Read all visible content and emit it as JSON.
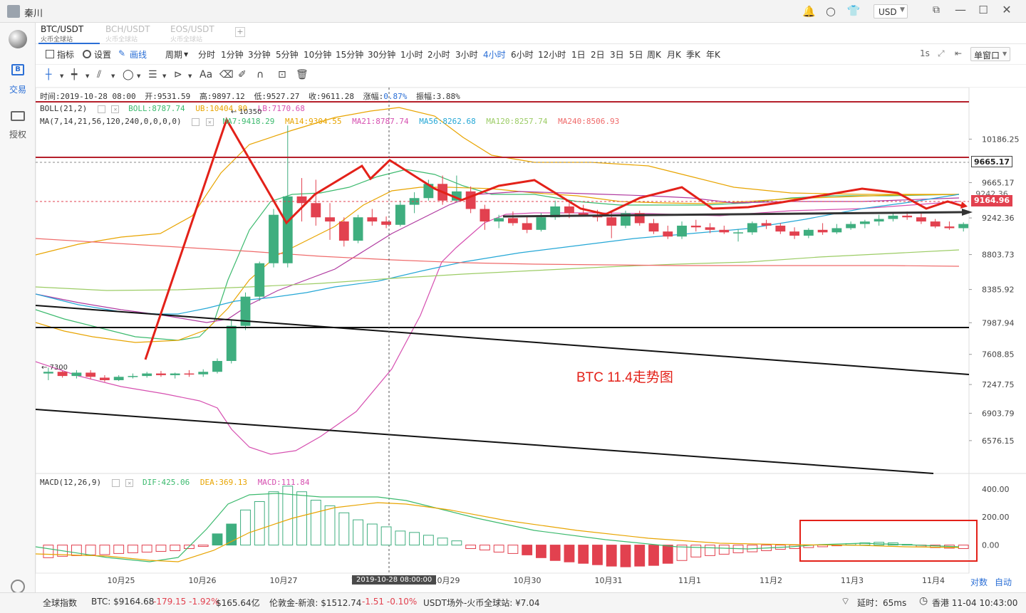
{
  "window": {
    "user": "秦川",
    "currency": "USD"
  },
  "tabs": [
    {
      "pair": "BTC/USDT",
      "exchange": "火币全球站"
    },
    {
      "pair": "BCH/USDT",
      "exchange": "火币全球站"
    },
    {
      "pair": "EOS/USDT",
      "exchange": "火币全球站"
    }
  ],
  "sidebar": {
    "trade": "交易",
    "auth": "授权"
  },
  "toolbar": {
    "indicator": "指标",
    "settings": "设置",
    "draw": "画线",
    "period": "周期",
    "periods": [
      "分时",
      "1分钟",
      "3分钟",
      "5分钟",
      "10分钟",
      "15分钟",
      "30分钟",
      "1小时",
      "2小时",
      "3小时",
      "4小时",
      "6小时",
      "12小时",
      "1日",
      "2日",
      "3日",
      "5日",
      "周K",
      "月K",
      "季K",
      "年K"
    ],
    "active_period": "4小时",
    "refresh": "1s",
    "window_mode": "单窗口"
  },
  "info_line": {
    "time": "时间:2019-10-28 08:00",
    "open": "开:9531.59",
    "high": "高:9897.12",
    "low": "低:9527.27",
    "close": "收:9611.28",
    "change_label": "涨幅:",
    "change_value": "0.87%",
    "amplitude": "振幅:3.88%"
  },
  "boll": {
    "label": "BOLL(21,2)",
    "mid": "BOLL:8787.74",
    "ub": "UB:10404.80",
    "lb": "LB:7170.68"
  },
  "ma": {
    "label": "MA(7,14,21,56,120,240,0,0,0,0)",
    "ma7": "MA7:9418.29",
    "ma14": "MA14:9304.55",
    "ma21": "MA21:8787.74",
    "ma56": "MA56:8262.68",
    "ma120": "MA120:8257.74",
    "ma240": "MA240:8506.93"
  },
  "macd": {
    "label": "MACD(12,26,9)",
    "dif": "DIF:425.06",
    "dea": "DEA:369.13",
    "macd": "MACD:111.84"
  },
  "annotation": "BTC 11.4走势图",
  "price_marks": {
    "high": "10350",
    "low": "7300"
  },
  "crosshair_label": "2019-10-28 08:00:00",
  "scale_buttons": {
    "log": "对数",
    "auto": "自动"
  },
  "price_tags": {
    "level": "9665.17",
    "level2": "9242.36",
    "current": "9164.96"
  },
  "status": {
    "index_label": "全球指数",
    "btc": "BTC: $9164.68",
    "btc_change": "-179.15 -1.92%",
    "btc_vol": "$165.64亿",
    "gold": "伦敦金-新浪: $1512.74",
    "gold_change": "-1.51 -0.10%",
    "usdt": "USDT场外-火币全球站: ¥7.04",
    "latency": "延时：65ms",
    "clock": "香港 11-04 10:43:00"
  },
  "colors": {
    "up": "#3fae7f",
    "down": "#e2414f",
    "accent": "#2b6fd6",
    "annotation": "#e32119"
  },
  "chart_data": {
    "type": "candlestick",
    "x_ticks": [
      "10月25",
      "10月26",
      "10月27",
      "10月28",
      "10月29",
      "10月30",
      "10月31",
      "11月1",
      "11月2",
      "11月3",
      "11月4"
    ],
    "y_ticks": [
      10186.25,
      9665.17,
      9242.36,
      8803.73,
      8385.92,
      7987.94,
      7608.85,
      7247.75,
      6903.79,
      6576.15
    ],
    "ylim": [
      6200,
      10650
    ],
    "candles": [
      [
        7380,
        7450,
        7300,
        7400
      ],
      [
        7400,
        7410,
        7330,
        7350
      ],
      [
        7350,
        7420,
        7320,
        7390
      ],
      [
        7390,
        7420,
        7310,
        7340
      ],
      [
        7330,
        7360,
        7280,
        7300
      ],
      [
        7300,
        7360,
        7290,
        7340
      ],
      [
        7340,
        7380,
        7320,
        7350
      ],
      [
        7350,
        7400,
        7330,
        7380
      ],
      [
        7380,
        7410,
        7340,
        7360
      ],
      [
        7360,
        7390,
        7320,
        7380
      ],
      [
        7380,
        7420,
        7340,
        7370
      ],
      [
        7370,
        7430,
        7340,
        7400
      ],
      [
        7400,
        7560,
        7380,
        7530
      ],
      [
        7530,
        8030,
        7500,
        7950
      ],
      [
        7950,
        8350,
        7900,
        8300
      ],
      [
        8300,
        8720,
        8250,
        8700
      ],
      [
        8700,
        9350,
        8650,
        9280
      ],
      [
        8700,
        10350,
        8650,
        9500
      ],
      [
        9500,
        9720,
        9200,
        9420
      ],
      [
        9420,
        9700,
        9150,
        9250
      ],
      [
        9250,
        9420,
        8980,
        9200
      ],
      [
        9200,
        9250,
        8900,
        8970
      ],
      [
        8970,
        9280,
        8940,
        9250
      ],
      [
        9250,
        9350,
        9150,
        9200
      ],
      [
        9200,
        9260,
        9120,
        9160
      ],
      [
        9160,
        9450,
        9140,
        9400
      ],
      [
        9400,
        9550,
        9300,
        9480
      ],
      [
        9480,
        9700,
        9450,
        9650
      ],
      [
        9650,
        9750,
        9400,
        9450
      ],
      [
        9450,
        9750,
        9430,
        9560
      ],
      [
        9560,
        9620,
        9300,
        9350
      ],
      [
        9350,
        9400,
        9100,
        9200
      ],
      [
        9200,
        9280,
        9120,
        9240
      ],
      [
        9240,
        9320,
        9150,
        9180
      ],
      [
        9180,
        9260,
        9060,
        9100
      ],
      [
        9100,
        9300,
        9080,
        9250
      ],
      [
        9250,
        9450,
        9220,
        9380
      ],
      [
        9380,
        9420,
        9240,
        9300
      ],
      [
        9300,
        9400,
        9260,
        9280
      ],
      [
        9280,
        9340,
        9200,
        9250
      ],
      [
        9250,
        9320,
        9000,
        9150
      ],
      [
        9150,
        9330,
        9120,
        9300
      ],
      [
        9300,
        9330,
        9150,
        9180
      ],
      [
        9180,
        9230,
        9050,
        9080
      ],
      [
        9080,
        9150,
        8990,
        9020
      ],
      [
        9020,
        9200,
        8990,
        9150
      ],
      [
        9150,
        9220,
        9080,
        9130
      ],
      [
        9130,
        9180,
        9060,
        9100
      ],
      [
        9100,
        9150,
        9050,
        9070
      ],
      [
        9070,
        9110,
        8960,
        9070
      ],
      [
        9070,
        9200,
        9040,
        9180
      ],
      [
        9180,
        9220,
        9110,
        9150
      ],
      [
        9150,
        9180,
        9050,
        9080
      ],
      [
        9080,
        9130,
        8990,
        9030
      ],
      [
        9030,
        9120,
        9000,
        9100
      ],
      [
        9100,
        9180,
        9040,
        9070
      ],
      [
        9070,
        9170,
        9050,
        9120
      ],
      [
        9120,
        9200,
        9100,
        9170
      ],
      [
        9170,
        9220,
        9120,
        9200
      ],
      [
        9200,
        9280,
        9150,
        9230
      ],
      [
        9230,
        9300,
        9200,
        9270
      ],
      [
        9270,
        9320,
        9220,
        9250
      ],
      [
        9250,
        9300,
        9170,
        9200
      ],
      [
        9200,
        9230,
        9120,
        9140
      ],
      [
        9140,
        9200,
        9100,
        9120
      ],
      [
        9120,
        9190,
        9080,
        9170
      ]
    ],
    "macd_ylim": [
      -200,
      480
    ],
    "macd_ticks": [
      400.0,
      200.0,
      0.0
    ],
    "macd_hist": [
      -90,
      -80,
      -75,
      -70,
      -68,
      -60,
      -55,
      -50,
      -45,
      -40,
      -25,
      -10,
      80,
      150,
      250,
      310,
      380,
      420,
      380,
      320,
      280,
      230,
      180,
      150,
      130,
      100,
      90,
      70,
      50,
      30,
      -25,
      -35,
      -50,
      -60,
      -70,
      -90,
      -110,
      -120,
      -130,
      -140,
      -150,
      -155,
      -150,
      -145,
      -130,
      -110,
      -85,
      -75,
      -65,
      -55,
      -48,
      -40,
      -30,
      -25,
      -18,
      -12,
      -5,
      10,
      16,
      20,
      16,
      5,
      -12,
      -18,
      -22,
      -25
    ]
  }
}
